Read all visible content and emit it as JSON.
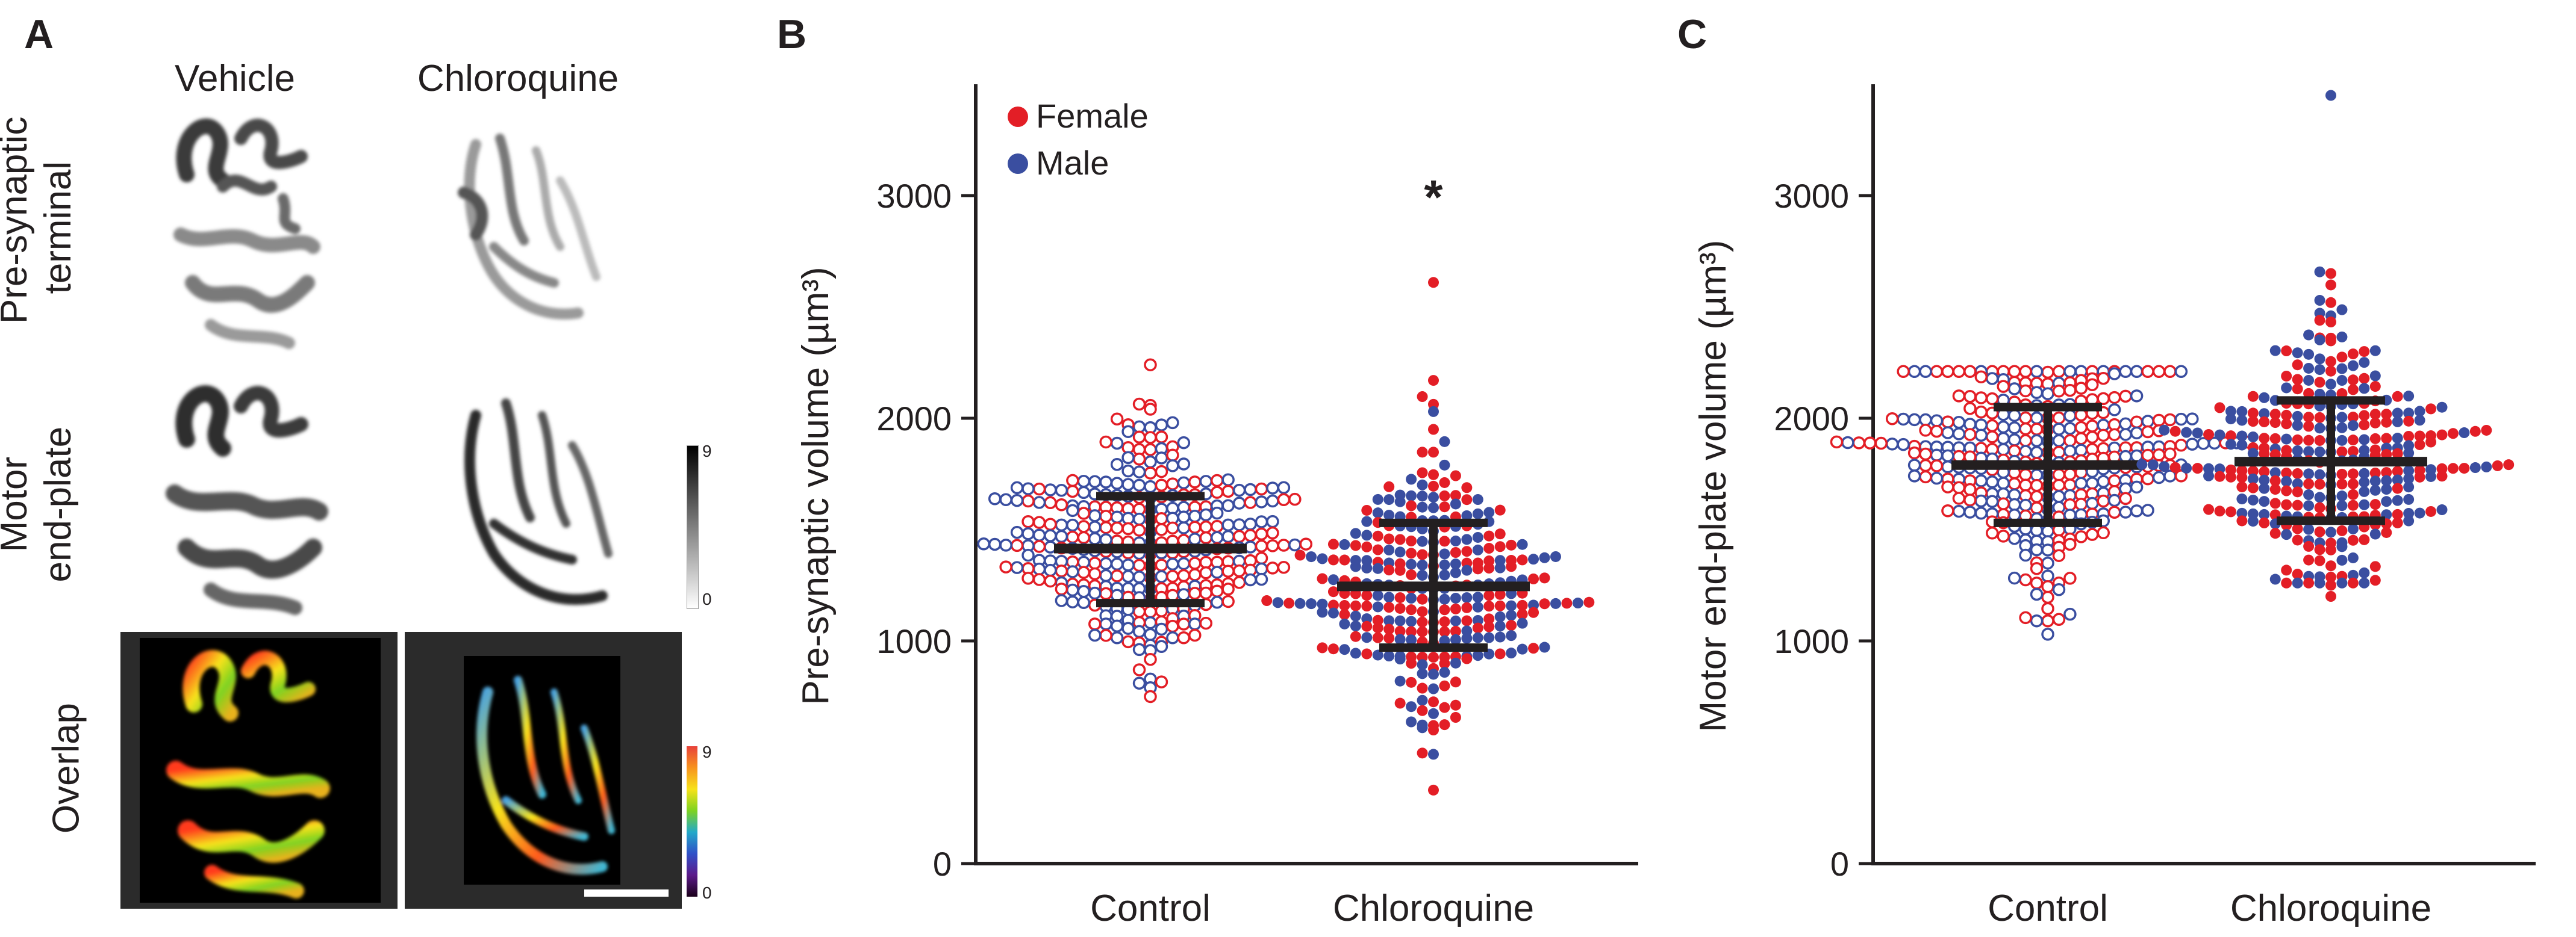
{
  "panel_a": {
    "letter": "A",
    "columns": [
      "Vehicle",
      "Chloroquine"
    ],
    "rows": [
      {
        "line1": "Pre-synaptic",
        "line2": "terminal"
      },
      {
        "line1": "Motor",
        "line2": "end-plate"
      },
      {
        "line1": "Overlap",
        "line2": ""
      }
    ],
    "gray_scale": {
      "max": "9",
      "min": "0"
    },
    "color_scale": {
      "max": "9",
      "min": "0"
    }
  },
  "chart_data": [
    {
      "panel": "B",
      "type": "scatter",
      "title": "",
      "xlabel": "",
      "ylabel": "Pre-synaptic volume  (µm³)",
      "categories": [
        "Control",
        "Chloroquine"
      ],
      "ylim": [
        0,
        3500
      ],
      "yticks": [
        0,
        1000,
        2000,
        3000
      ],
      "legend": [
        {
          "name": "Female",
          "color": "#e31e26"
        },
        {
          "name": "Male",
          "color": "#3a4ea0"
        }
      ],
      "legend_position": "top-left",
      "significance": [
        {
          "category": "Chloroquine",
          "label": "*",
          "y": 3000
        }
      ],
      "groups": [
        {
          "category": "Control",
          "filled": false,
          "n": 330,
          "mean": 1415,
          "sd": 240,
          "min": 750,
          "max": 2240,
          "bar_mean": 1415,
          "bar_low": 1170,
          "bar_high": 1650,
          "outliers": [
            2240,
            1980,
            1940,
            790,
            750
          ]
        },
        {
          "category": "Chloroquine",
          "filled": true,
          "n": 300,
          "mean": 1245,
          "sd": 275,
          "min": 330,
          "max": 2610,
          "bar_mean": 1245,
          "bar_low": 970,
          "bar_high": 1530,
          "outliers": [
            2610,
            2170,
            2030,
            1950,
            620,
            600,
            330
          ]
        }
      ]
    },
    {
      "panel": "C",
      "type": "scatter",
      "title": "",
      "xlabel": "",
      "ylabel": "Motor end-plate volume  (µm³)",
      "categories": [
        "Control",
        "Chloroquine"
      ],
      "ylim": [
        0,
        3500
      ],
      "yticks": [
        0,
        1000,
        2000,
        3000
      ],
      "legend": [],
      "significance": [],
      "groups": [
        {
          "category": "Control",
          "filled": false,
          "n": 340,
          "mean": 1790,
          "sd": 255,
          "min": 1030,
          "max": 2330,
          "bar_mean": 1790,
          "bar_low": 1530,
          "bar_high": 2050,
          "outliers": [
            1030,
            1090,
            1120
          ]
        },
        {
          "category": "Chloroquine",
          "filled": true,
          "n": 330,
          "mean": 1805,
          "sd": 260,
          "min": 1200,
          "max": 3450,
          "bar_mean": 1805,
          "bar_low": 1540,
          "bar_high": 2080,
          "outliers": [
            3450,
            2460,
            2440,
            1200,
            1250,
            1290
          ]
        }
      ]
    }
  ]
}
